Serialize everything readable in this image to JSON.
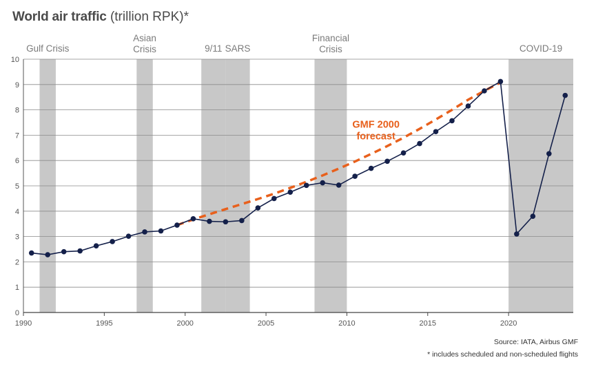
{
  "chart_data": {
    "type": "line",
    "title": "World air traffic",
    "title_suffix": "(trillion RPK)*",
    "xlim": [
      1990,
      2024
    ],
    "ylim": [
      0,
      10
    ],
    "x_ticks": [
      1990,
      1995,
      2000,
      2005,
      2010,
      2015,
      2020
    ],
    "y_ticks": [
      0,
      1,
      2,
      3,
      4,
      5,
      6,
      7,
      8,
      9,
      10
    ],
    "grid": true,
    "line_color": "#14204a",
    "forecast_color": "#e8601c",
    "shade_color": "#c8c8c8",
    "crisis_periods": [
      {
        "label": "Gulf Crisis",
        "start": 1991,
        "end": 1992
      },
      {
        "label": "Asian Crisis",
        "start": 1997,
        "end": 1998
      },
      {
        "label": "9/11",
        "start": 2001,
        "end": 2002.5
      },
      {
        "label": "SARS",
        "start": 2002.5,
        "end": 2004
      },
      {
        "label": "Financial Crisis",
        "start": 2008,
        "end": 2010
      },
      {
        "label": "COVID-19",
        "start": 2020,
        "end": 2024
      }
    ],
    "series": [
      {
        "type": "actual",
        "x": [
          1990.5,
          1991.5,
          1992.5,
          1993.5,
          1994.5,
          1995.5,
          1996.5,
          1997.5,
          1998.5,
          1999.5,
          2000.5,
          2001.5,
          2002.5,
          2003.5,
          2004.5,
          2005.5,
          2006.5,
          2007.5,
          2008.5,
          2009.5,
          2010.5,
          2011.5,
          2012.5,
          2013.5,
          2014.5,
          2015.5,
          2016.5,
          2017.5,
          2018.5,
          2019.5,
          2020.5,
          2021.5,
          2022.5,
          2023.5
        ],
        "y": [
          2.35,
          2.28,
          2.4,
          2.43,
          2.63,
          2.8,
          3.01,
          3.18,
          3.22,
          3.45,
          3.7,
          3.6,
          3.58,
          3.63,
          4.13,
          4.5,
          4.75,
          5.02,
          5.12,
          5.03,
          5.38,
          5.69,
          5.97,
          6.3,
          6.67,
          7.14,
          7.57,
          8.15,
          8.75,
          9.12,
          3.1,
          3.8,
          6.27,
          8.57
        ]
      },
      {
        "name": "GMF 2000 forecast",
        "type": "forecast",
        "x": [
          1999.5,
          2000.5,
          2001.5,
          2002.5,
          2003.5,
          2004.5,
          2005.5,
          2006.5,
          2007.5,
          2008.5,
          2009.5,
          2010.5,
          2011.5,
          2012.5,
          2013.5,
          2014.5,
          2015.5,
          2016.5,
          2017.5,
          2018.5,
          2019.5
        ],
        "y": [
          3.45,
          3.67,
          3.88,
          4.08,
          4.28,
          4.48,
          4.69,
          4.92,
          5.16,
          5.41,
          5.68,
          5.96,
          6.26,
          6.57,
          6.9,
          7.25,
          7.62,
          8.0,
          8.4,
          8.75,
          9.08
        ]
      }
    ],
    "forecast_label_lines": [
      "GMF 2000",
      "forecast"
    ],
    "forecast_label_at": {
      "x": 2011.8,
      "y": 7.3
    },
    "source": "Source: IATA, Airbus GMF",
    "footnote": "* includes scheduled and non-scheduled flights"
  }
}
